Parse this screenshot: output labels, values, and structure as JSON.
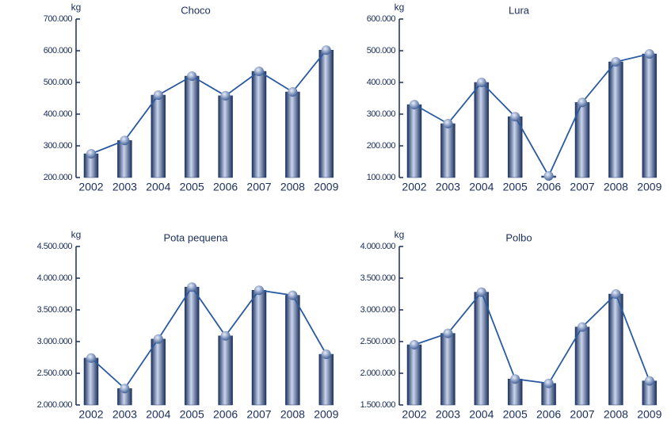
{
  "chart_data": [
    {
      "type": "bar",
      "title": "Choco",
      "y_label": "kg",
      "color": "#1f3c70",
      "line_color": "#2a5aa0",
      "categories": [
        "2002",
        "2003",
        "2004",
        "2005",
        "2006",
        "2007",
        "2008",
        "2009"
      ],
      "values": [
        275000,
        317000,
        460000,
        520000,
        458000,
        535000,
        470000,
        602000
      ],
      "ylim": [
        200000,
        700000
      ],
      "yticks": [
        {
          "value": 200000,
          "label": "200.000"
        },
        {
          "value": 300000,
          "label": "300.000"
        },
        {
          "value": 400000,
          "label": "400.000"
        },
        {
          "value": 500000,
          "label": "500.000"
        },
        {
          "value": 600000,
          "label": "600.000"
        },
        {
          "value": 700000,
          "label": "700.000"
        }
      ]
    },
    {
      "type": "bar",
      "title": "Lura",
      "y_label": "kg",
      "color": "#1f3c70",
      "line_color": "#2a5aa0",
      "categories": [
        "2002",
        "2003",
        "2004",
        "2005",
        "2006",
        "2007",
        "2008",
        "2009"
      ],
      "values": [
        330000,
        270000,
        400000,
        292000,
        105000,
        337000,
        465000,
        490000
      ],
      "ylim": [
        100000,
        600000
      ],
      "yticks": [
        {
          "value": 100000,
          "label": "100.000"
        },
        {
          "value": 200000,
          "label": "200.000"
        },
        {
          "value": 300000,
          "label": "300.000"
        },
        {
          "value": 400000,
          "label": "400.000"
        },
        {
          "value": 500000,
          "label": "500.000"
        },
        {
          "value": 600000,
          "label": "600.000"
        }
      ]
    },
    {
      "type": "bar",
      "title": "Pota pequena",
      "y_label": "kg",
      "color": "#1f3c70",
      "line_color": "#2a5aa0",
      "categories": [
        "2002",
        "2003",
        "2004",
        "2005",
        "2006",
        "2007",
        "2008",
        "2009"
      ],
      "values": [
        2740000,
        2260000,
        3040000,
        3860000,
        3090000,
        3810000,
        3730000,
        2800000
      ],
      "ylim": [
        2000000,
        4500000
      ],
      "yticks": [
        {
          "value": 2000000,
          "label": "2.000.000"
        },
        {
          "value": 2500000,
          "label": "2.500.000"
        },
        {
          "value": 3000000,
          "label": "3.000.000"
        },
        {
          "value": 3500000,
          "label": "3.500.000"
        },
        {
          "value": 4000000,
          "label": "4.000.000"
        },
        {
          "value": 4500000,
          "label": "4.500.000"
        }
      ]
    },
    {
      "type": "bar",
      "title": "Polbo",
      "y_label": "kg",
      "color": "#1f3c70",
      "line_color": "#2a5aa0",
      "categories": [
        "2002",
        "2003",
        "2004",
        "2005",
        "2006",
        "2007",
        "2008",
        "2009"
      ],
      "values": [
        2450000,
        2630000,
        3280000,
        1910000,
        1840000,
        2730000,
        3250000,
        1880000
      ],
      "ylim": [
        1500000,
        4000000
      ],
      "yticks": [
        {
          "value": 1500000,
          "label": "1.500.000"
        },
        {
          "value": 2000000,
          "label": "2.000.000"
        },
        {
          "value": 2500000,
          "label": "2.500.000"
        },
        {
          "value": 3000000,
          "label": "3.000.000"
        },
        {
          "value": 3500000,
          "label": "3.500.000"
        },
        {
          "value": 4000000,
          "label": "4.000.000"
        }
      ]
    }
  ]
}
